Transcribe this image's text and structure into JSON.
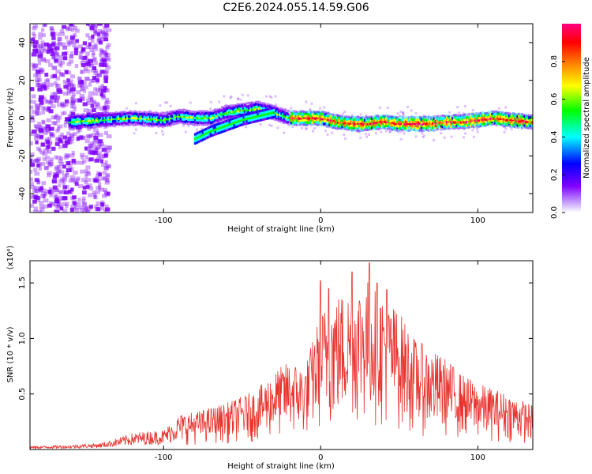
{
  "title": "C2E6.2024.055.14.59.G06",
  "chart_data": [
    {
      "type": "heatmap",
      "title": "C2E6.2024.055.14.59.G06",
      "xlabel": "Height of straight line (km)",
      "ylabel": "Frequency (Hz)",
      "xlim": [
        -185,
        135
      ],
      "ylim": [
        -50,
        50
      ],
      "xticks": [
        -100,
        0,
        100
      ],
      "xtick_labels": [
        "-100",
        "0",
        "100"
      ],
      "yticks": [
        -40,
        -20,
        0,
        20,
        40
      ],
      "ytick_labels": [
        "-40",
        "-20",
        "0",
        "20",
        "40"
      ],
      "grid": false,
      "ridge": {
        "x": [
          -160,
          -140,
          -120,
          -100,
          -90,
          -80,
          -70,
          -60,
          -50,
          -40,
          -30,
          -20,
          -10,
          0,
          10,
          20,
          30,
          40,
          50,
          60,
          70,
          80,
          90,
          100,
          110,
          120,
          135
        ],
        "y": [
          -2,
          -1,
          0,
          -1,
          1,
          0,
          0,
          3,
          4,
          5,
          3,
          0,
          0,
          0,
          -2,
          -3,
          -3,
          -2,
          -3,
          -3,
          -3,
          -2,
          -2,
          -1,
          0,
          -1,
          -2
        ]
      },
      "ridge_lower_branch": {
        "x": [
          -80,
          -70,
          -60,
          -50,
          -40,
          -30
        ],
        "y": [
          -11,
          -7,
          -4,
          -1,
          1,
          3
        ]
      },
      "noise_region_x": [
        -185,
        -135
      ],
      "colorbar": {
        "label": "Normalized spectral amplitude",
        "range": [
          0.0,
          1.0
        ],
        "ticks": [
          0.0,
          0.2,
          0.4,
          0.6,
          0.8
        ],
        "tick_labels": [
          "0.0",
          "0.2",
          "0.4",
          "0.6",
          "0.8"
        ],
        "colors": [
          "#ffffff",
          "#7f00ff",
          "#0000ff",
          "#00ffff",
          "#00ff00",
          "#ffff00",
          "#ff7f00",
          "#ff0000",
          "#ff0080"
        ]
      }
    },
    {
      "type": "line",
      "xlabel": "Height of straight line (km)",
      "ylabel": "SNR (10 * v/v)",
      "multiplier": "(x10⁴)",
      "xlim": [
        -185,
        135
      ],
      "ylim": [
        0,
        1.7
      ],
      "xticks": [
        -100,
        0,
        100
      ],
      "xtick_labels": [
        "-100",
        "0",
        "100"
      ],
      "yticks": [
        0.5,
        1.0,
        1.5
      ],
      "ytick_labels": [
        "0.5",
        "1.0",
        "1.5"
      ],
      "grid": false,
      "series": [
        {
          "color": "#e8332e",
          "envelope": {
            "x": [
              -185,
              -160,
              -140,
              -130,
              -120,
              -100,
              -90,
              -80,
              -70,
              -60,
              -50,
              -40,
              -30,
              -20,
              -10,
              0,
              10,
              20,
              30,
              40,
              50,
              60,
              70,
              80,
              90,
              100,
              110,
              120,
              135
            ],
            "y": [
              0.03,
              0.04,
              0.06,
              0.1,
              0.15,
              0.18,
              0.32,
              0.34,
              0.38,
              0.42,
              0.48,
              0.55,
              0.7,
              0.8,
              0.75,
              1.25,
              1.4,
              1.45,
              1.55,
              1.4,
              1.25,
              1.0,
              0.9,
              0.82,
              0.68,
              0.6,
              0.55,
              0.5,
              0.4
            ]
          },
          "peaks": {
            "x": [
              0,
              5,
              20,
              31,
              36,
              42
            ],
            "y": [
              1.52,
              1.45,
              1.6,
              1.68,
              1.5,
              1.44
            ]
          }
        }
      ]
    }
  ]
}
